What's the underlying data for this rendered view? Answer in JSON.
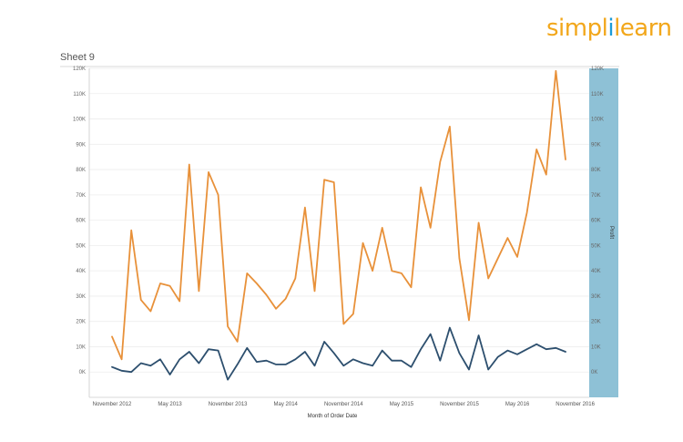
{
  "branding": {
    "logo_part1": "simpl",
    "logo_part2": "i",
    "logo_part3": "learn",
    "logo_color_orange": "#f2a71b",
    "logo_color_blue": "#1b9bd7"
  },
  "sheet": {
    "title": "Sheet 9"
  },
  "chart_data": {
    "type": "line",
    "xlabel": "Month of Order Date",
    "ylabel_left": "",
    "ylabel_right": "Profit",
    "ylim": [
      -10000,
      120000
    ],
    "yticks": [
      0,
      10000,
      20000,
      30000,
      40000,
      50000,
      60000,
      70000,
      80000,
      90000,
      100000,
      110000,
      120000
    ],
    "ytick_labels": [
      "0K",
      "10K",
      "20K",
      "30K",
      "40K",
      "50K",
      "60K",
      "70K",
      "80K",
      "90K",
      "100K",
      "110K",
      "120K"
    ],
    "xticks": [
      {
        "label": "November 2012",
        "index": 0
      },
      {
        "label": "May 2013",
        "index": 6
      },
      {
        "label": "November 2013",
        "index": 12
      },
      {
        "label": "May 2014",
        "index": 18
      },
      {
        "label": "November 2014",
        "index": 24
      },
      {
        "label": "May 2015",
        "index": 30
      },
      {
        "label": "November 2015",
        "index": 36
      },
      {
        "label": "May 2016",
        "index": 42
      },
      {
        "label": "November 2016",
        "index": 48
      }
    ],
    "grid": true,
    "right_axis_shaded": true,
    "colors": {
      "orange": "#e8913a",
      "blue": "#2d4f6e",
      "right_axis_bg": "#8ec1d6"
    },
    "series": [
      {
        "color": "#e8913a",
        "values": [
          14000,
          5000,
          56000,
          28500,
          24000,
          35000,
          34000,
          28000,
          82000,
          32000,
          79000,
          70000,
          18000,
          12000,
          39000,
          35000,
          30500,
          25000,
          29000,
          37000,
          65000,
          32000,
          76000,
          75000,
          19000,
          23000,
          51000,
          40000,
          57000,
          40000,
          39000,
          33500,
          73000,
          57000,
          83000,
          97000,
          45000,
          20500,
          59000,
          37000,
          45000,
          53000,
          45500,
          63000,
          88000,
          78000,
          119000,
          84000
        ]
      },
      {
        "color": "#2d4f6e",
        "values": [
          2000,
          500,
          0,
          3500,
          2500,
          5000,
          -1000,
          5000,
          8000,
          3500,
          9000,
          8500,
          -3000,
          3000,
          9500,
          4000,
          4500,
          3000,
          3000,
          5000,
          8000,
          2500,
          12000,
          7500,
          2500,
          5000,
          3500,
          2500,
          8500,
          4500,
          4500,
          2000,
          9000,
          15000,
          4500,
          17500,
          7500,
          1000,
          14500,
          1000,
          6000,
          8500,
          7000,
          9000,
          11000,
          9000,
          9500,
          8000
        ]
      }
    ]
  }
}
